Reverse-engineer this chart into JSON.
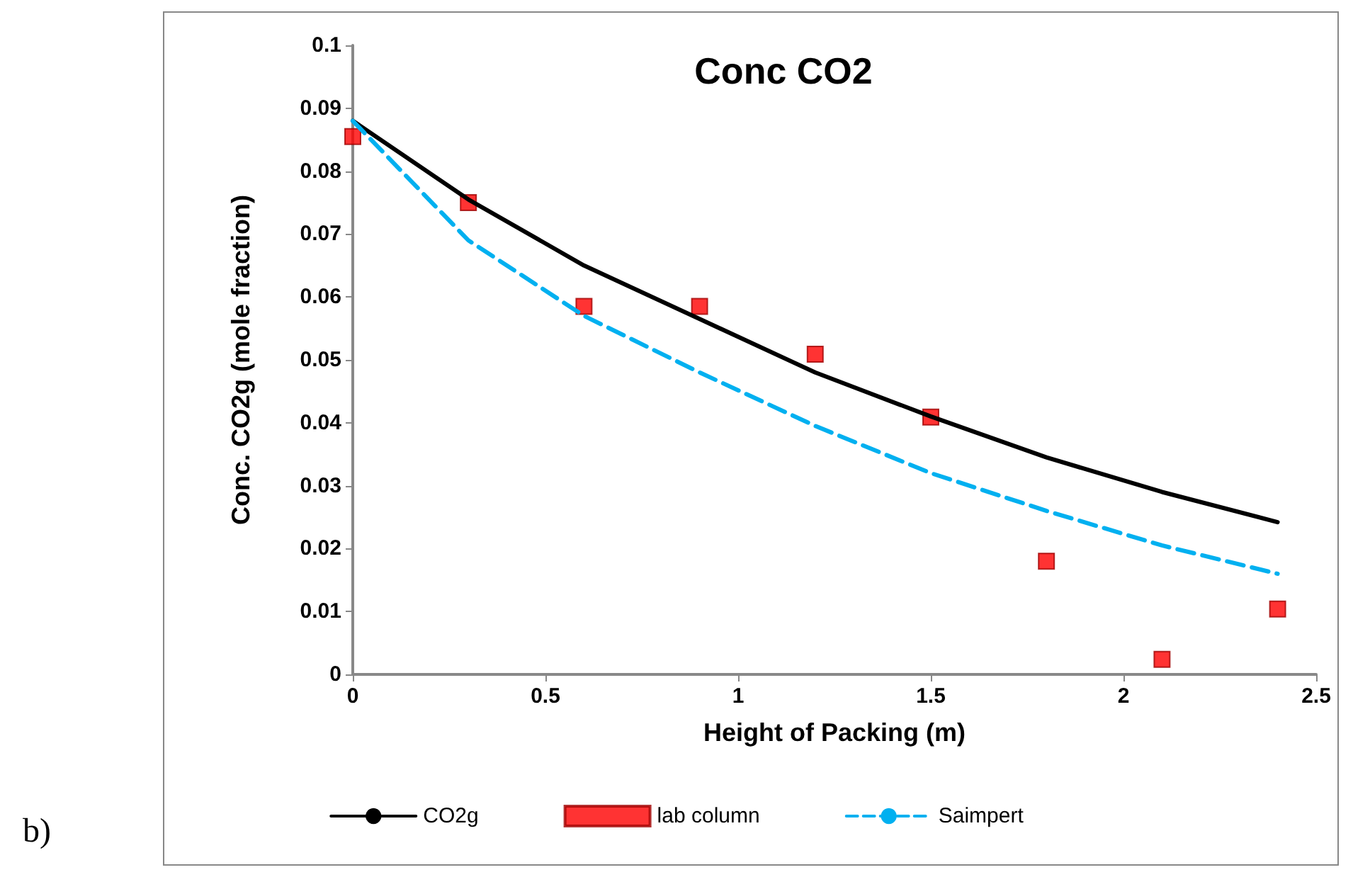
{
  "chart_data": {
    "type": "line",
    "title": "Conc CO2",
    "xlabel": "Height of Packing (m)",
    "ylabel": "Conc. CO2g (mole fraction)",
    "annotations": [
      "b)"
    ],
    "xlim": [
      0,
      2.5
    ],
    "xticks": [
      0,
      0.5,
      1,
      1.5,
      2,
      2.5
    ],
    "ylim": [
      0,
      0.1
    ],
    "yticks": [
      0,
      0.01,
      0.02,
      0.03,
      0.04,
      0.05,
      0.06,
      0.07,
      0.08,
      0.09,
      0.1
    ],
    "grid": false,
    "legend": "bottom",
    "series": [
      {
        "name": "CO2g",
        "color": "#000000",
        "line_style": "solid",
        "marker": "none",
        "x": [
          0,
          0.3,
          0.6,
          0.9,
          1.2,
          1.5,
          1.8,
          2.1,
          2.4
        ],
        "values": [
          0.088,
          0.0755,
          0.065,
          0.0565,
          0.048,
          0.041,
          0.0345,
          0.029,
          0.0242
        ]
      },
      {
        "name": "lab column",
        "type": "scatter",
        "color": "#ff0000",
        "marker": "square",
        "x": [
          0,
          0.3,
          0.6,
          0.9,
          1.2,
          1.5,
          1.8,
          2.1,
          2.4
        ],
        "values": [
          0.0855,
          0.075,
          0.0585,
          0.0585,
          0.0509,
          0.0409,
          0.018,
          0.0024,
          0.0104
        ]
      },
      {
        "name": "Saimpert",
        "color": "#00b0f0",
        "line_style": "dashed",
        "marker": "none",
        "x": [
          0,
          0.3,
          0.6,
          0.9,
          1.2,
          1.5,
          1.8,
          2.1,
          2.4
        ],
        "values": [
          0.088,
          0.069,
          0.057,
          0.048,
          0.0395,
          0.032,
          0.026,
          0.0205,
          0.016
        ]
      }
    ]
  }
}
